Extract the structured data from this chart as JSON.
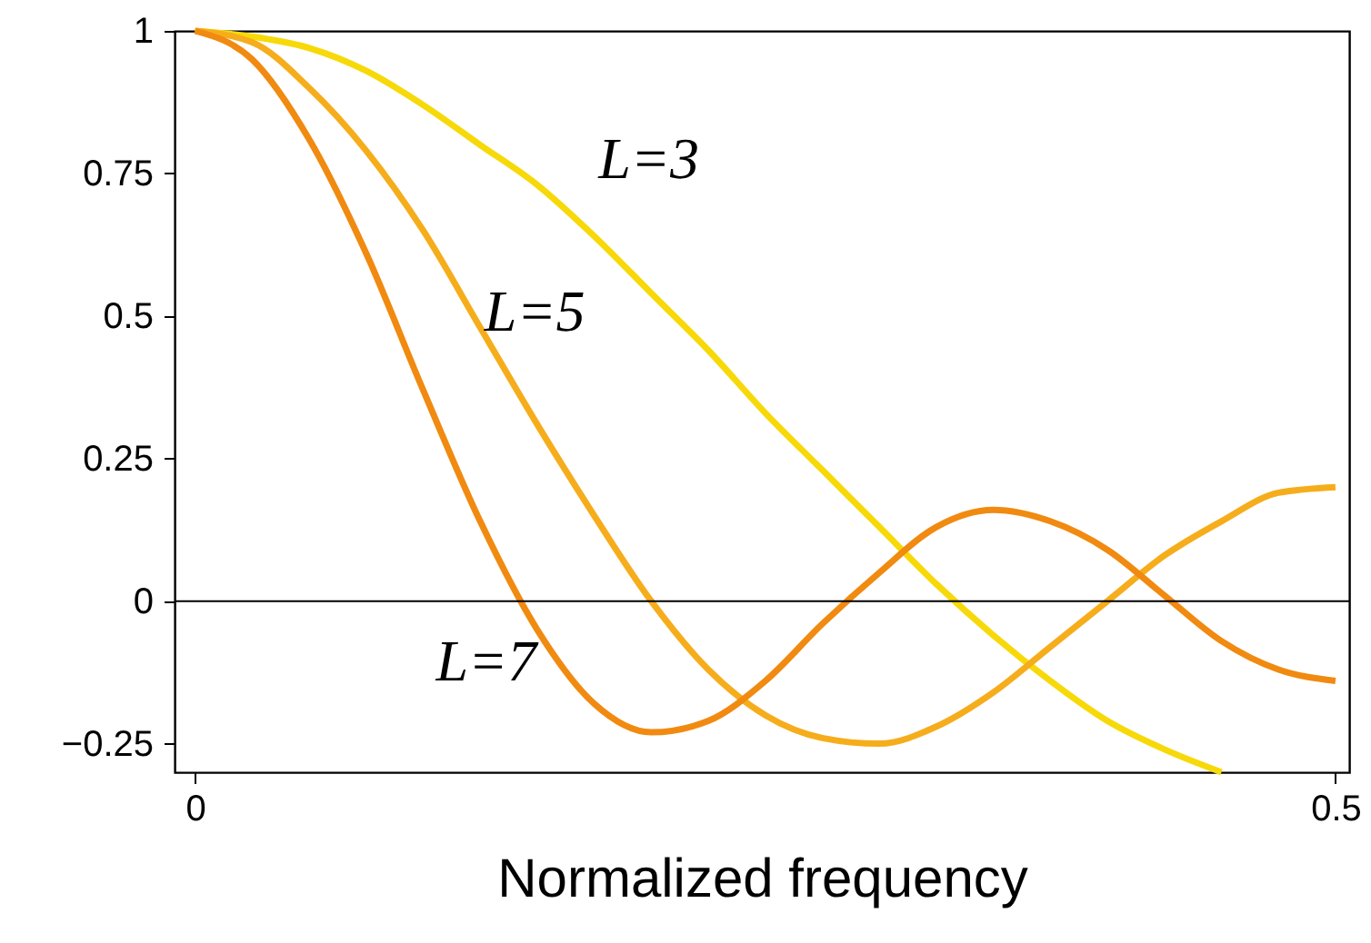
{
  "chart_data": {
    "type": "line",
    "xlabel": "Normalized frequency",
    "x": [
      0,
      0.025,
      0.05,
      0.075,
      0.1,
      0.125,
      0.15,
      0.175,
      0.2,
      0.225,
      0.25,
      0.275,
      0.3,
      0.325,
      0.35,
      0.375,
      0.4,
      0.425,
      0.45,
      0.475,
      0.5
    ],
    "series": [
      {
        "name": "L=3",
        "color": "#f7d90a",
        "values": [
          1,
          0.99,
          0.97,
          0.93,
          0.87,
          0.8,
          0.73,
          0.64,
          0.54,
          0.44,
          0.33,
          0.23,
          0.13,
          0.03,
          -0.06,
          -0.14,
          -0.21,
          -0.26,
          -0.3,
          null,
          null
        ]
      },
      {
        "name": "L=5",
        "color": "#f6ad1c",
        "values": [
          1,
          0.98,
          0.9,
          0.79,
          0.65,
          0.48,
          0.31,
          0.15,
          0,
          -0.12,
          -0.2,
          -0.24,
          -0.25,
          -0.22,
          -0.16,
          -0.08,
          0,
          0.08,
          0.14,
          0.19,
          0.2
        ]
      },
      {
        "name": "L=7",
        "color": "#f18a10",
        "values": [
          1,
          0.95,
          0.81,
          0.61,
          0.37,
          0.14,
          -0.05,
          -0.18,
          -0.23,
          -0.21,
          -0.14,
          -0.04,
          0.05,
          0.13,
          0.16,
          0.14,
          0.09,
          0.01,
          -0.07,
          -0.12,
          -0.14
        ]
      }
    ],
    "ref_lines": [
      {
        "axis": "y",
        "value": 0,
        "color": "#000000"
      }
    ],
    "xlim": [
      -0.009,
      0.506
    ],
    "ylim": [
      -0.3,
      1
    ],
    "xticks": [
      0,
      0.5
    ],
    "yticks": [
      {
        "value": -0.25,
        "label": "−0.25"
      },
      0,
      0.25,
      0.5,
      0.75,
      1
    ],
    "grid": false,
    "line_style": "solid",
    "marker": "none"
  }
}
